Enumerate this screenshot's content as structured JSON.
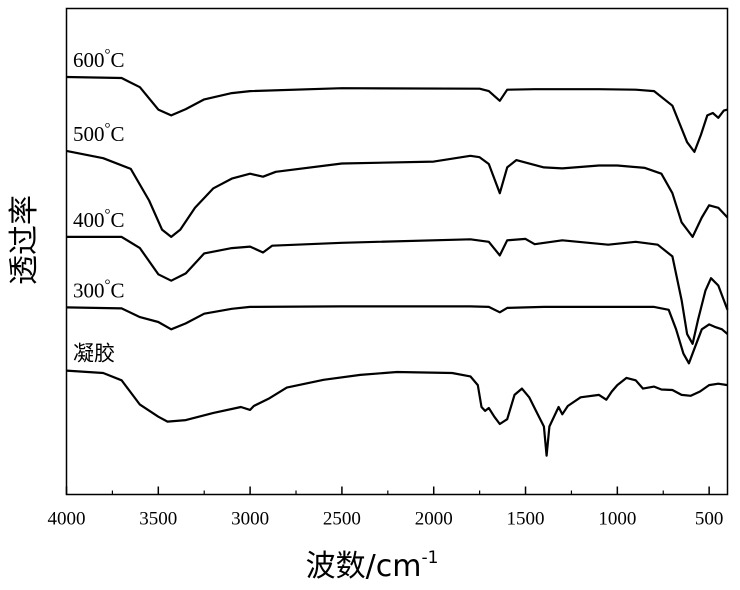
{
  "chart_data": {
    "type": "line",
    "title": "",
    "xlabel": "波数/cm",
    "xlabel_sup": "-1",
    "ylabel": "透过率",
    "xlim": [
      4000,
      400
    ],
    "x_reversed": true,
    "y_ticks_shown": false,
    "ylim": [
      0,
      1
    ],
    "xticks": [
      4000,
      3500,
      3000,
      2500,
      2000,
      1500,
      1000,
      500
    ],
    "xtick_labels": [
      "4000",
      "3500",
      "3000",
      "2500",
      "2000",
      "1500",
      "1000",
      "500"
    ],
    "grid": false,
    "legend": "inline labels, top-left of each curve",
    "series": [
      {
        "name": "600°C",
        "label_parts": [
          "600",
          "°",
          "C"
        ],
        "points": [
          [
            4000,
            0.859
          ],
          [
            3700,
            0.857
          ],
          [
            3600,
            0.838
          ],
          [
            3500,
            0.792
          ],
          [
            3430,
            0.78
          ],
          [
            3350,
            0.793
          ],
          [
            3250,
            0.813
          ],
          [
            3100,
            0.826
          ],
          [
            3000,
            0.83
          ],
          [
            2500,
            0.836
          ],
          [
            1750,
            0.835
          ],
          [
            1700,
            0.83
          ],
          [
            1640,
            0.81
          ],
          [
            1600,
            0.833
          ],
          [
            1450,
            0.834
          ],
          [
            1100,
            0.834
          ],
          [
            900,
            0.833
          ],
          [
            800,
            0.83
          ],
          [
            700,
            0.8
          ],
          [
            620,
            0.725
          ],
          [
            580,
            0.705
          ],
          [
            545,
            0.74
          ],
          [
            510,
            0.78
          ],
          [
            480,
            0.785
          ],
          [
            450,
            0.775
          ],
          [
            420,
            0.79
          ],
          [
            400,
            0.792
          ]
        ]
      },
      {
        "name": "500°C",
        "label_parts": [
          "500",
          "°",
          "C"
        ],
        "points": [
          [
            4000,
            0.707
          ],
          [
            3800,
            0.692
          ],
          [
            3650,
            0.67
          ],
          [
            3550,
            0.605
          ],
          [
            3480,
            0.545
          ],
          [
            3430,
            0.53
          ],
          [
            3380,
            0.545
          ],
          [
            3300,
            0.59
          ],
          [
            3200,
            0.63
          ],
          [
            3100,
            0.65
          ],
          [
            3000,
            0.66
          ],
          [
            2930,
            0.654
          ],
          [
            2860,
            0.664
          ],
          [
            2500,
            0.681
          ],
          [
            2000,
            0.685
          ],
          [
            1800,
            0.697
          ],
          [
            1750,
            0.694
          ],
          [
            1700,
            0.68
          ],
          [
            1640,
            0.62
          ],
          [
            1600,
            0.673
          ],
          [
            1550,
            0.688
          ],
          [
            1400,
            0.673
          ],
          [
            1300,
            0.671
          ],
          [
            1100,
            0.677
          ],
          [
            1000,
            0.677
          ],
          [
            850,
            0.672
          ],
          [
            760,
            0.66
          ],
          [
            700,
            0.62
          ],
          [
            650,
            0.56
          ],
          [
            590,
            0.53
          ],
          [
            540,
            0.57
          ],
          [
            500,
            0.595
          ],
          [
            450,
            0.59
          ],
          [
            400,
            0.57
          ]
        ]
      },
      {
        "name": "400°C",
        "label_parts": [
          "400",
          "°",
          "C"
        ],
        "points": [
          [
            4000,
            0.53
          ],
          [
            3700,
            0.53
          ],
          [
            3600,
            0.507
          ],
          [
            3500,
            0.453
          ],
          [
            3430,
            0.44
          ],
          [
            3350,
            0.455
          ],
          [
            3250,
            0.496
          ],
          [
            3100,
            0.507
          ],
          [
            3000,
            0.51
          ],
          [
            2930,
            0.498
          ],
          [
            2880,
            0.512
          ],
          [
            2500,
            0.518
          ],
          [
            1800,
            0.525
          ],
          [
            1700,
            0.52
          ],
          [
            1640,
            0.492
          ],
          [
            1600,
            0.523
          ],
          [
            1500,
            0.526
          ],
          [
            1450,
            0.515
          ],
          [
            1300,
            0.523
          ],
          [
            1050,
            0.514
          ],
          [
            900,
            0.52
          ],
          [
            780,
            0.514
          ],
          [
            700,
            0.49
          ],
          [
            650,
            0.4
          ],
          [
            620,
            0.33
          ],
          [
            590,
            0.31
          ],
          [
            560,
            0.36
          ],
          [
            520,
            0.42
          ],
          [
            490,
            0.445
          ],
          [
            450,
            0.43
          ],
          [
            420,
            0.4
          ],
          [
            400,
            0.38
          ]
        ]
      },
      {
        "name": "300°C",
        "label_parts": [
          "300",
          "°",
          "C"
        ],
        "points": [
          [
            4000,
            0.385
          ],
          [
            3700,
            0.383
          ],
          [
            3600,
            0.365
          ],
          [
            3500,
            0.355
          ],
          [
            3430,
            0.34
          ],
          [
            3350,
            0.352
          ],
          [
            3250,
            0.372
          ],
          [
            3100,
            0.382
          ],
          [
            3000,
            0.386
          ],
          [
            2500,
            0.387
          ],
          [
            1800,
            0.387
          ],
          [
            1700,
            0.386
          ],
          [
            1640,
            0.375
          ],
          [
            1600,
            0.384
          ],
          [
            1400,
            0.386
          ],
          [
            800,
            0.386
          ],
          [
            720,
            0.38
          ],
          [
            680,
            0.34
          ],
          [
            640,
            0.29
          ],
          [
            610,
            0.27
          ],
          [
            580,
            0.3
          ],
          [
            540,
            0.34
          ],
          [
            500,
            0.35
          ],
          [
            470,
            0.345
          ],
          [
            430,
            0.34
          ],
          [
            400,
            0.33
          ]
        ]
      },
      {
        "name": "凝胶",
        "label_parts": [
          "凝胶",
          "",
          ""
        ],
        "points": [
          [
            4000,
            0.255
          ],
          [
            3800,
            0.25
          ],
          [
            3700,
            0.235
          ],
          [
            3600,
            0.185
          ],
          [
            3500,
            0.16
          ],
          [
            3450,
            0.15
          ],
          [
            3350,
            0.153
          ],
          [
            3200,
            0.168
          ],
          [
            3050,
            0.18
          ],
          [
            3000,
            0.174
          ],
          [
            2980,
            0.182
          ],
          [
            2900,
            0.197
          ],
          [
            2800,
            0.22
          ],
          [
            2600,
            0.236
          ],
          [
            2400,
            0.246
          ],
          [
            2200,
            0.252
          ],
          [
            1900,
            0.25
          ],
          [
            1800,
            0.243
          ],
          [
            1760,
            0.225
          ],
          [
            1740,
            0.18
          ],
          [
            1720,
            0.172
          ],
          [
            1700,
            0.178
          ],
          [
            1670,
            0.16
          ],
          [
            1640,
            0.145
          ],
          [
            1600,
            0.155
          ],
          [
            1560,
            0.205
          ],
          [
            1520,
            0.218
          ],
          [
            1480,
            0.2
          ],
          [
            1440,
            0.17
          ],
          [
            1400,
            0.14
          ],
          [
            1385,
            0.08
          ],
          [
            1370,
            0.14
          ],
          [
            1320,
            0.18
          ],
          [
            1300,
            0.165
          ],
          [
            1270,
            0.182
          ],
          [
            1200,
            0.2
          ],
          [
            1100,
            0.205
          ],
          [
            1060,
            0.195
          ],
          [
            1030,
            0.212
          ],
          [
            1000,
            0.225
          ],
          [
            950,
            0.24
          ],
          [
            900,
            0.235
          ],
          [
            860,
            0.218
          ],
          [
            800,
            0.222
          ],
          [
            760,
            0.216
          ],
          [
            700,
            0.215
          ],
          [
            650,
            0.205
          ],
          [
            600,
            0.203
          ],
          [
            550,
            0.212
          ],
          [
            500,
            0.225
          ],
          [
            450,
            0.228
          ],
          [
            400,
            0.225
          ]
        ]
      }
    ]
  }
}
